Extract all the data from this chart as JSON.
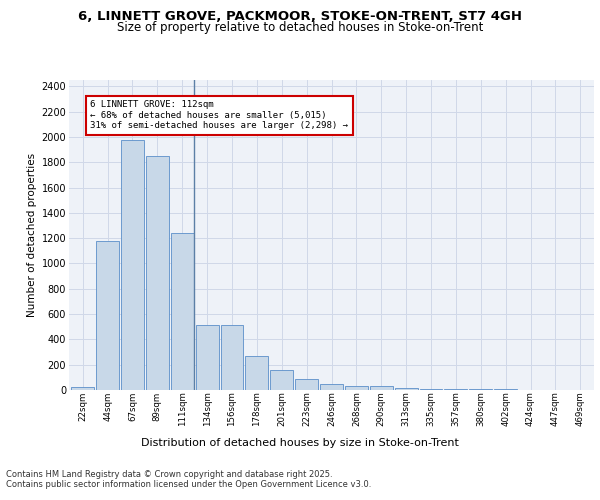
{
  "title1": "6, LINNETT GROVE, PACKMOOR, STOKE-ON-TRENT, ST7 4GH",
  "title2": "Size of property relative to detached houses in Stoke-on-Trent",
  "xlabel": "Distribution of detached houses by size in Stoke-on-Trent",
  "ylabel": "Number of detached properties",
  "categories": [
    "22sqm",
    "44sqm",
    "67sqm",
    "89sqm",
    "111sqm",
    "134sqm",
    "156sqm",
    "178sqm",
    "201sqm",
    "223sqm",
    "246sqm",
    "268sqm",
    "290sqm",
    "313sqm",
    "335sqm",
    "357sqm",
    "380sqm",
    "402sqm",
    "424sqm",
    "447sqm",
    "469sqm"
  ],
  "values": [
    25,
    1175,
    1975,
    1850,
    1240,
    510,
    510,
    270,
    155,
    85,
    45,
    30,
    28,
    15,
    10,
    8,
    5,
    4,
    3,
    2,
    2
  ],
  "bar_color": "#c8d8e8",
  "bar_edge_color": "#5b8fc9",
  "vline_color": "#5b7fa6",
  "annotation_title": "6 LINNETT GROVE: 112sqm",
  "annotation_line1": "← 68% of detached houses are smaller (5,015)",
  "annotation_line2": "31% of semi-detached houses are larger (2,298) →",
  "annotation_box_color": "#ffffff",
  "annotation_box_edge": "#cc0000",
  "ylim": [
    0,
    2450
  ],
  "yticks": [
    0,
    200,
    400,
    600,
    800,
    1000,
    1200,
    1400,
    1600,
    1800,
    2000,
    2200,
    2400
  ],
  "grid_color": "#d0d8e8",
  "bg_color": "#eef2f8",
  "footer1": "Contains HM Land Registry data © Crown copyright and database right 2025.",
  "footer2": "Contains public sector information licensed under the Open Government Licence v3.0."
}
